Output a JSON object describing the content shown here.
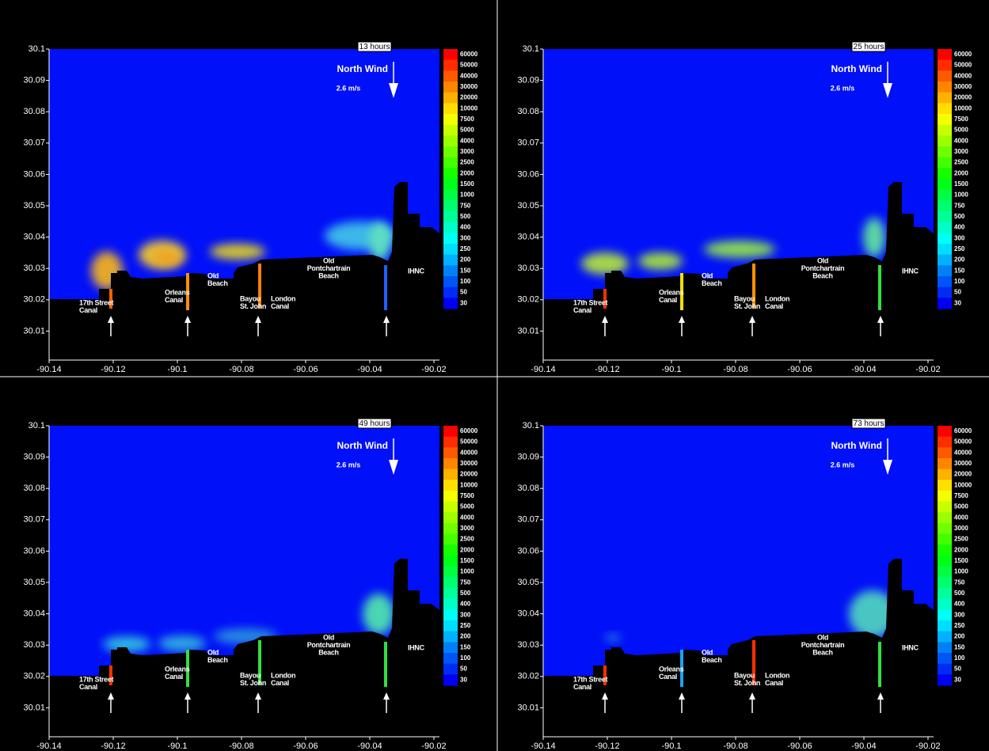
{
  "panels": [
    {
      "time": "13 hours"
    },
    {
      "time": "25 hours"
    },
    {
      "time": "49 hours"
    },
    {
      "time": "73 hours"
    }
  ],
  "wind": {
    "title": "North Wind",
    "speed": "2.6 m/s"
  },
  "locations": [
    {
      "lines": [
        "17th Street",
        "Canal"
      ]
    },
    {
      "lines": [
        "Orleans",
        "Canal"
      ]
    },
    {
      "lines": [
        "Old",
        "Beach"
      ]
    },
    {
      "lines": [
        "Bayou",
        "St. John"
      ]
    },
    {
      "lines": [
        "London",
        "Canal"
      ]
    },
    {
      "lines": [
        "Old",
        "Pontchartrain",
        "Beach"
      ]
    },
    {
      "lines": [
        "IHNC"
      ]
    }
  ],
  "xlim": [
    -90.14,
    -90.02
  ],
  "xticks": [
    -90.14,
    -90.12,
    -90.1,
    -90.08,
    -90.06,
    -90.04,
    -90.02
  ],
  "ylim": [
    30.0,
    30.1
  ],
  "yticks": [
    30.1,
    30.09,
    30.08,
    30.07,
    30.06,
    30.05,
    30.04,
    30.03,
    30.02,
    30.01
  ],
  "colorbar": [
    60000,
    50000,
    40000,
    30000,
    20000,
    10000,
    7500,
    5000,
    4000,
    3000,
    2500,
    2000,
    1500,
    1000,
    750,
    500,
    400,
    300,
    250,
    200,
    150,
    100,
    50,
    30
  ]
}
